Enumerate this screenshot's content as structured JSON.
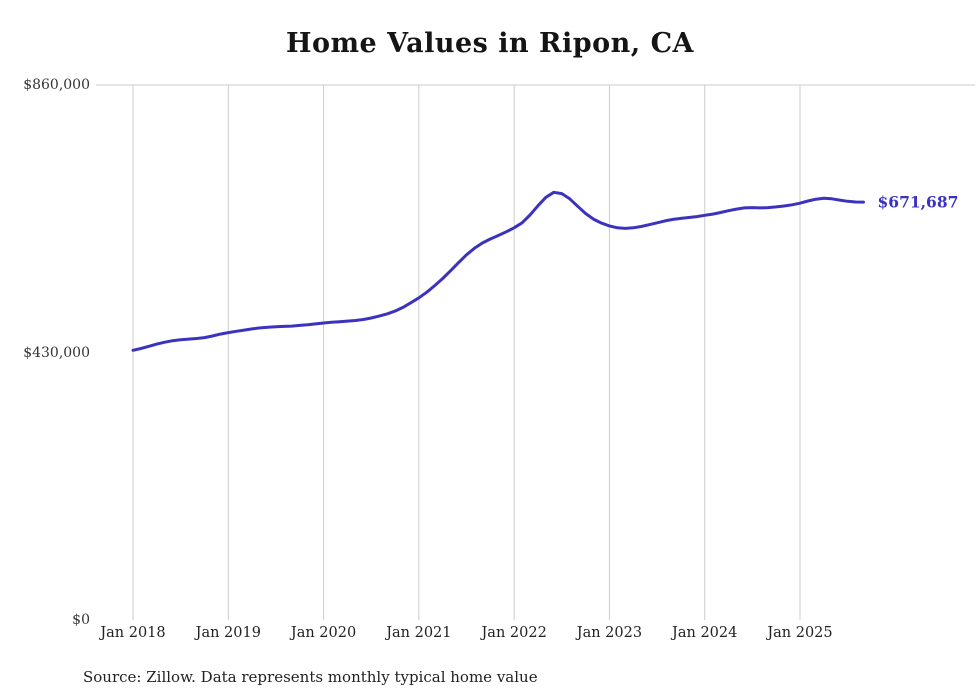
{
  "page": {
    "title": "Home Values in Ripon, CA",
    "source_note": "Source: Zillow. Data represents monthly typical home value"
  },
  "chart_data": {
    "type": "line",
    "title": "Home Values in Ripon, CA",
    "series_name": "Monthly typical home value",
    "ylim": [
      0,
      860000
    ],
    "grid": "vertical-yearly",
    "legend": "none",
    "line_color": "#3b33c0",
    "grid_color": "#cccccc",
    "end_label": "$671,687",
    "end_value": 671687,
    "y_ticks": [
      {
        "label": "$860,000",
        "value": 860000
      },
      {
        "label": "$430,000",
        "value": 430000
      },
      {
        "label": "$0",
        "value": 0
      }
    ],
    "x_ticks": [
      {
        "label": "Jan 2018",
        "month_index": 0
      },
      {
        "label": "Jan 2019",
        "month_index": 12
      },
      {
        "label": "Jan 2020",
        "month_index": 24
      },
      {
        "label": "Jan 2021",
        "month_index": 36
      },
      {
        "label": "Jan 2022",
        "month_index": 48
      },
      {
        "label": "Jan 2023",
        "month_index": 60
      },
      {
        "label": "Jan 2024",
        "month_index": 72
      },
      {
        "label": "Jan 2025",
        "month_index": 84
      }
    ],
    "x": [
      "2018-01",
      "2018-02",
      "2018-03",
      "2018-04",
      "2018-05",
      "2018-06",
      "2018-07",
      "2018-08",
      "2018-09",
      "2018-10",
      "2018-11",
      "2018-12",
      "2019-01",
      "2019-02",
      "2019-03",
      "2019-04",
      "2019-05",
      "2019-06",
      "2019-07",
      "2019-08",
      "2019-09",
      "2019-10",
      "2019-11",
      "2019-12",
      "2020-01",
      "2020-02",
      "2020-03",
      "2020-04",
      "2020-05",
      "2020-06",
      "2020-07",
      "2020-08",
      "2020-09",
      "2020-10",
      "2020-11",
      "2020-12",
      "2021-01",
      "2021-02",
      "2021-03",
      "2021-04",
      "2021-05",
      "2021-06",
      "2021-07",
      "2021-08",
      "2021-09",
      "2021-10",
      "2021-11",
      "2021-12",
      "2022-01",
      "2022-02",
      "2022-03",
      "2022-04",
      "2022-05",
      "2022-06",
      "2022-07",
      "2022-08",
      "2022-09",
      "2022-10",
      "2022-11",
      "2022-12",
      "2023-01",
      "2023-02",
      "2023-03",
      "2023-04",
      "2023-05",
      "2023-06",
      "2023-07",
      "2023-08",
      "2023-09",
      "2023-10",
      "2023-11",
      "2023-12",
      "2024-01",
      "2024-02",
      "2024-03",
      "2024-04",
      "2024-05",
      "2024-06",
      "2024-07",
      "2024-08",
      "2024-09",
      "2024-10",
      "2024-11",
      "2024-12",
      "2025-01",
      "2025-02",
      "2025-03",
      "2025-04",
      "2025-05",
      "2025-06",
      "2025-07",
      "2025-08",
      "2025-09"
    ],
    "values": [
      433500,
      436500,
      440000,
      443500,
      446500,
      449000,
      450500,
      451500,
      452500,
      454000,
      456500,
      459500,
      462000,
      464000,
      466000,
      468000,
      469500,
      470500,
      471500,
      472000,
      472500,
      473500,
      474500,
      476000,
      477500,
      478500,
      479500,
      480500,
      481500,
      483000,
      485500,
      488500,
      492000,
      496500,
      502500,
      510000,
      518000,
      527000,
      537500,
      549000,
      561500,
      574500,
      587000,
      597500,
      606000,
      612500,
      618000,
      624000,
      630500,
      638500,
      651000,
      666000,
      679500,
      687500,
      685500,
      677000,
      665000,
      653500,
      644500,
      638000,
      633500,
      630500,
      629500,
      630500,
      632500,
      635500,
      638500,
      641500,
      644000,
      645500,
      647000,
      648500,
      650500,
      652500,
      655000,
      658000,
      660500,
      662500,
      663000,
      662500,
      663000,
      664000,
      665500,
      667500,
      670000,
      673500,
      676500,
      678000,
      677000,
      675000,
      673000,
      672000,
      671687
    ]
  }
}
